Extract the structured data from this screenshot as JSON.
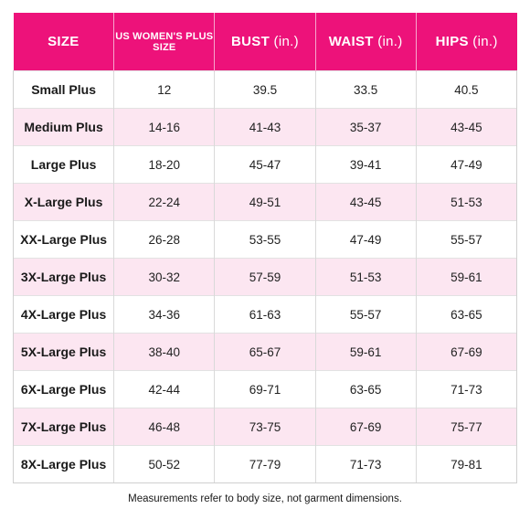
{
  "table": {
    "headers": [
      {
        "main": "SIZE",
        "unit": ""
      },
      {
        "main": "US WOMEN'S PLUS SIZE",
        "unit": ""
      },
      {
        "main": "BUST",
        "unit": "(in.)"
      },
      {
        "main": "WAIST",
        "unit": "(in.)"
      },
      {
        "main": "HIPS",
        "unit": "(in.)"
      }
    ],
    "rows": [
      [
        "Small Plus",
        "12",
        "39.5",
        "33.5",
        "40.5"
      ],
      [
        "Medium Plus",
        "14-16",
        "41-43",
        "35-37",
        "43-45"
      ],
      [
        "Large Plus",
        "18-20",
        "45-47",
        "39-41",
        "47-49"
      ],
      [
        "X-Large Plus",
        "22-24",
        "49-51",
        "43-45",
        "51-53"
      ],
      [
        "XX-Large Plus",
        "26-28",
        "53-55",
        "47-49",
        "55-57"
      ],
      [
        "3X-Large Plus",
        "30-32",
        "57-59",
        "51-53",
        "59-61"
      ],
      [
        "4X-Large Plus",
        "34-36",
        "61-63",
        "55-57",
        "63-65"
      ],
      [
        "5X-Large Plus",
        "38-40",
        "65-67",
        "59-61",
        "67-69"
      ],
      [
        "6X-Large Plus",
        "42-44",
        "69-71",
        "63-65",
        "71-73"
      ],
      [
        "7X-Large Plus",
        "46-48",
        "73-75",
        "67-69",
        "75-77"
      ],
      [
        "8X-Large Plus",
        "50-52",
        "77-79",
        "71-73",
        "79-81"
      ]
    ]
  },
  "footnote": "Measurements refer to body size, not garment dimensions.",
  "colors": {
    "header_bg": "#ed127a",
    "stripe_bg": "#fce6f1"
  }
}
